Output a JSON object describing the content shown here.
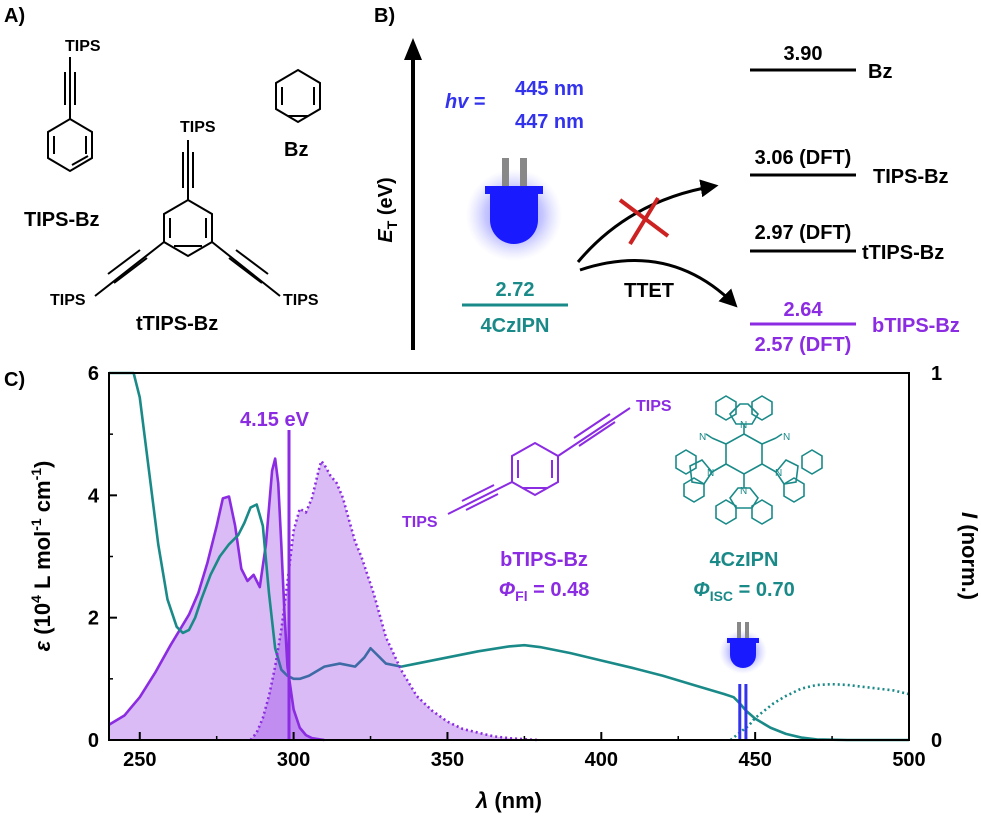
{
  "panel_a": {
    "label": "A)",
    "tips_bz": {
      "group": "TIPS",
      "name": "TIPS-Bz"
    },
    "bz": {
      "name": "Bz"
    },
    "ttips_bz": {
      "group_top": "TIPS",
      "group_left": "TIPS",
      "group_right": "TIPS",
      "name": "tTIPS-Bz"
    }
  },
  "panel_b": {
    "label": "B)",
    "y_axis_label": "E",
    "y_axis_sub": "T",
    "y_axis_unit": " (eV)",
    "hv_label": "hv",
    "hv_eq": "=",
    "wavelength_1": "445 nm",
    "wavelength_2": "447 nm",
    "donor": {
      "energy": "2.72",
      "name": "4CzIPN"
    },
    "process": "TTET",
    "levels": [
      {
        "energy": "3.90",
        "name": "Bz"
      },
      {
        "energy": "3.06 (DFT)",
        "name": "TIPS-Bz"
      },
      {
        "energy": "2.97 (DFT)",
        "name": "tTIPS-Bz"
      },
      {
        "energy": "2.64",
        "energy_dft": "2.57 (DFT)",
        "name": "bTIPS-Bz"
      }
    ],
    "colors": {
      "donor": "#1a8a88",
      "acceptor": "#8b2be2",
      "light": "#3333ee",
      "cross": "#cc2222"
    }
  },
  "panel_c": {
    "label": "C)",
    "annotation_energy": "4.15 eV",
    "bt_group": "TIPS",
    "bt_name": "bTIPS-Bz",
    "bt_qy_symbol": "Φ",
    "bt_qy_sub": "Fl",
    "bt_qy_value": " = 0.48",
    "cz_name": "4CzIPN",
    "cz_qy_symbol": "Φ",
    "cz_qy_sub": "ISC",
    "cz_qy_value": " = 0.70"
  },
  "chart_data": {
    "type": "line",
    "xlabel": "λ (nm)",
    "ylabel_left": "ε (10⁴ L mol⁻¹ cm⁻¹)",
    "ylabel_right": "I (norm.)",
    "xlim": [
      240,
      500
    ],
    "ylim_left": [
      0,
      6
    ],
    "ylim_right": [
      0,
      1
    ],
    "x_ticks": [
      250,
      300,
      350,
      400,
      450,
      500
    ],
    "y_ticks_left": [
      0,
      2,
      4,
      6
    ],
    "y_ticks_right": [
      0,
      1
    ],
    "vertical_markers": [
      {
        "x": 298.5,
        "color": "#8b2be2"
      },
      {
        "x": 445,
        "color": "#3333ee"
      },
      {
        "x": 447,
        "color": "#3333ee"
      }
    ],
    "series": [
      {
        "color": "#8b2be2",
        "style": "solid-filled",
        "x": [
          240,
          245,
          250,
          255,
          260,
          263,
          266,
          269,
          272,
          275,
          277,
          279,
          281,
          283,
          285,
          287,
          289,
          291,
          293,
          294,
          295,
          296,
          297,
          298,
          300,
          302,
          304,
          306,
          310
        ],
        "y": [
          0.25,
          0.4,
          0.7,
          1.1,
          1.55,
          1.8,
          2.05,
          2.4,
          2.9,
          3.5,
          3.95,
          3.98,
          3.5,
          2.8,
          2.6,
          2.7,
          2.5,
          3.2,
          4.4,
          4.6,
          4.2,
          3.2,
          2.1,
          1.2,
          0.5,
          0.2,
          0.08,
          0.03,
          0.0
        ]
      },
      {
        "color": "#1a8a88",
        "style": "solid",
        "x": [
          240,
          245,
          248,
          250,
          253,
          256,
          259,
          262,
          264,
          266,
          268,
          270,
          273,
          276,
          279,
          282,
          284,
          286,
          288,
          290,
          292,
          294,
          296,
          298,
          300,
          302,
          305,
          310,
          315,
          320,
          323,
          325,
          327,
          330,
          335,
          340,
          350,
          360,
          370,
          375,
          380,
          390,
          400,
          410,
          420,
          430,
          440,
          443,
          445,
          447,
          450,
          455,
          460,
          465,
          470,
          480,
          490,
          500
        ],
        "y": [
          6.0,
          6.0,
          6.0,
          5.6,
          4.4,
          3.2,
          2.3,
          1.85,
          1.75,
          1.8,
          2.0,
          2.3,
          2.7,
          3.0,
          3.2,
          3.35,
          3.55,
          3.8,
          3.85,
          3.5,
          2.4,
          1.5,
          1.15,
          1.05,
          1.0,
          1.0,
          1.05,
          1.2,
          1.25,
          1.2,
          1.35,
          1.5,
          1.4,
          1.25,
          1.2,
          1.25,
          1.35,
          1.45,
          1.53,
          1.55,
          1.52,
          1.42,
          1.3,
          1.18,
          1.05,
          0.9,
          0.75,
          0.7,
          0.6,
          0.48,
          0.35,
          0.2,
          0.1,
          0.04,
          0.01,
          0.0,
          0.0,
          0.0
        ]
      },
      {
        "color": "#8b2be2",
        "style": "dotted-filled",
        "x": [
          286,
          288,
          290,
          292,
          294,
          296,
          298,
          300,
          302,
          304,
          306,
          308,
          309,
          310,
          312,
          314,
          316,
          318,
          320,
          322,
          324,
          326,
          328,
          330,
          335,
          340,
          345,
          350,
          355,
          360,
          365,
          370,
          375,
          380
        ],
        "y": [
          0.0,
          0.02,
          0.06,
          0.12,
          0.2,
          0.3,
          0.43,
          0.57,
          0.63,
          0.62,
          0.66,
          0.73,
          0.76,
          0.75,
          0.72,
          0.7,
          0.66,
          0.6,
          0.54,
          0.5,
          0.45,
          0.4,
          0.34,
          0.28,
          0.19,
          0.12,
          0.08,
          0.05,
          0.03,
          0.02,
          0.01,
          0.005,
          0.002,
          0.0
        ]
      },
      {
        "color": "#1a8a88",
        "style": "dotted",
        "x": [
          442,
          445,
          448,
          450,
          453,
          456,
          460,
          465,
          470,
          475,
          480,
          485,
          490,
          495,
          500
        ],
        "y": [
          0.0,
          0.02,
          0.04,
          0.06,
          0.08,
          0.1,
          0.12,
          0.14,
          0.15,
          0.152,
          0.15,
          0.145,
          0.14,
          0.135,
          0.125
        ]
      }
    ]
  }
}
